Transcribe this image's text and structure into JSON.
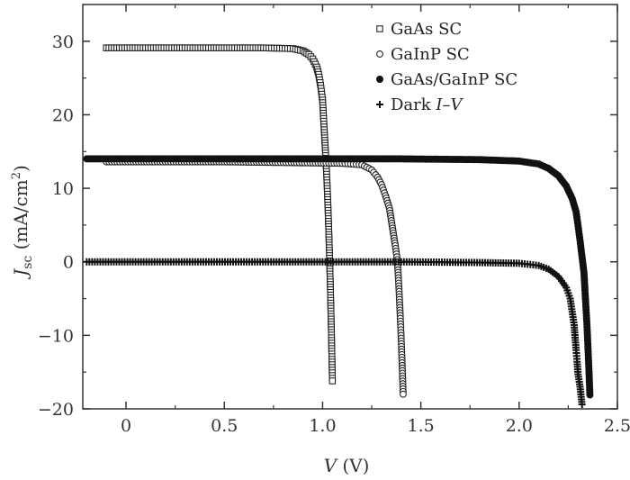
{
  "chart_data": {
    "type": "scatter",
    "title": "",
    "xlabel": {
      "italic": "V",
      "rest": " (V)"
    },
    "ylabel": {
      "italic": "J",
      "sub": "sc",
      "rest": " (mA/cm",
      "sup": "2",
      "close": ")"
    },
    "xlim": [
      -0.22,
      2.5
    ],
    "ylim": [
      -20,
      35
    ],
    "xticks": [
      0,
      0.5,
      1.0,
      1.5,
      2.0,
      2.5
    ],
    "xtick_labels": [
      "0",
      "0.5",
      "1.0",
      "1.5",
      "2.0",
      "2.5"
    ],
    "yticks": [
      -20,
      -10,
      0,
      10,
      20,
      30
    ],
    "ytick_labels": [
      "−20",
      "−10",
      "0",
      "10",
      "20",
      "30"
    ],
    "grid": false,
    "legend_position": "top-right",
    "legend": [
      {
        "marker": "square-open",
        "label": "GaAs SC"
      },
      {
        "marker": "circle-open",
        "label": "GaInP SC"
      },
      {
        "marker": "circle-filled",
        "label": "GaAs/GaInP SC"
      },
      {
        "marker": "plus",
        "label_prefix": "Dark ",
        "label_italic": "I",
        "label_mid": "–",
        "label_italic2": "V"
      }
    ],
    "series": [
      {
        "marker": "square-open",
        "points": [
          [
            -0.1,
            29.1
          ],
          [
            0.1,
            29.1
          ],
          [
            0.3,
            29.1
          ],
          [
            0.5,
            29.1
          ],
          [
            0.7,
            29.1
          ],
          [
            0.85,
            29.0
          ],
          [
            0.9,
            28.7
          ],
          [
            0.93,
            28.2
          ],
          [
            0.95,
            27.6
          ],
          [
            0.97,
            26.5
          ],
          [
            0.98,
            25.5
          ],
          [
            0.99,
            24.0
          ],
          [
            1.0,
            22.0
          ],
          [
            1.005,
            19.5
          ],
          [
            1.01,
            17.2
          ],
          [
            1.015,
            14.8
          ],
          [
            1.02,
            12.3
          ],
          [
            1.025,
            9.2
          ],
          [
            1.03,
            5.5
          ],
          [
            1.035,
            1.2
          ],
          [
            1.04,
            -3.8
          ],
          [
            1.045,
            -9.6
          ],
          [
            1.05,
            -16.2
          ]
        ]
      },
      {
        "marker": "circle-open",
        "points": [
          [
            -0.1,
            13.6
          ],
          [
            0.2,
            13.6
          ],
          [
            0.5,
            13.6
          ],
          [
            0.8,
            13.5
          ],
          [
            1.1,
            13.4
          ],
          [
            1.2,
            13.2
          ],
          [
            1.25,
            12.5
          ],
          [
            1.28,
            11.5
          ],
          [
            1.3,
            10.5
          ],
          [
            1.32,
            9.0
          ],
          [
            1.34,
            7.3
          ],
          [
            1.35,
            5.6
          ],
          [
            1.36,
            3.9
          ],
          [
            1.37,
            2.2
          ],
          [
            1.38,
            0.3
          ],
          [
            1.385,
            -1.8
          ],
          [
            1.39,
            -4.4
          ],
          [
            1.395,
            -7.3
          ],
          [
            1.4,
            -10.4
          ],
          [
            1.405,
            -14.1
          ],
          [
            1.41,
            -18.0
          ]
        ]
      },
      {
        "marker": "circle-filled",
        "points": [
          [
            -0.2,
            14.0
          ],
          [
            0.2,
            14.0
          ],
          [
            0.6,
            14.0
          ],
          [
            1.0,
            14.0
          ],
          [
            1.4,
            14.0
          ],
          [
            1.8,
            13.9
          ],
          [
            2.0,
            13.7
          ],
          [
            2.1,
            13.3
          ],
          [
            2.15,
            12.7
          ],
          [
            2.2,
            11.7
          ],
          [
            2.24,
            10.3
          ],
          [
            2.27,
            8.6
          ],
          [
            2.29,
            6.8
          ],
          [
            2.3,
            4.9
          ],
          [
            2.31,
            2.9
          ],
          [
            2.32,
            0.7
          ],
          [
            2.33,
            -1.5
          ],
          [
            2.335,
            -3.9
          ],
          [
            2.34,
            -6.2
          ],
          [
            2.345,
            -8.5
          ],
          [
            2.35,
            -11.5
          ],
          [
            2.355,
            -14.6
          ],
          [
            2.36,
            -18.1
          ]
        ]
      },
      {
        "marker": "plus",
        "points": [
          [
            -0.2,
            0.0
          ],
          [
            0.2,
            0.0
          ],
          [
            0.6,
            0.0
          ],
          [
            1.0,
            0.0
          ],
          [
            1.4,
            0.0
          ],
          [
            1.8,
            -0.1
          ],
          [
            2.0,
            -0.2
          ],
          [
            2.1,
            -0.5
          ],
          [
            2.15,
            -1.0
          ],
          [
            2.2,
            -2.0
          ],
          [
            2.24,
            -3.5
          ],
          [
            2.26,
            -5.0
          ],
          [
            2.27,
            -6.8
          ],
          [
            2.28,
            -8.6
          ],
          [
            2.285,
            -10.3
          ],
          [
            2.29,
            -12.0
          ],
          [
            2.295,
            -13.6
          ],
          [
            2.3,
            -15.3
          ],
          [
            2.31,
            -17.0
          ],
          [
            2.32,
            -19.4
          ]
        ]
      }
    ]
  }
}
